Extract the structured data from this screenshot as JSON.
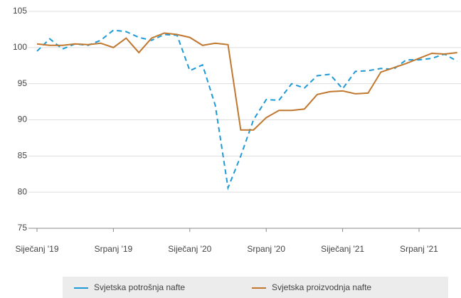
{
  "chart_data": {
    "type": "line",
    "categories": [
      "Siječanj '19",
      null,
      null,
      null,
      null,
      null,
      "Srpanj '19",
      null,
      null,
      null,
      null,
      null,
      "Siječanj '20",
      null,
      null,
      null,
      null,
      null,
      "Srpanj '20",
      null,
      null,
      null,
      null,
      null,
      "Siječanj '21",
      null,
      null,
      null,
      null,
      null,
      "Srpanj '21",
      null,
      null,
      null
    ],
    "series": [
      {
        "name": "Svjetska potrošnja nafte",
        "color": "#1e9ad6",
        "dashed": true,
        "values": [
          99.5,
          101.2,
          99.8,
          100.5,
          100.3,
          101,
          102.4,
          102.2,
          101.4,
          101,
          101.8,
          101.7,
          96.8,
          97.6,
          92,
          80.6,
          85,
          90,
          92.8,
          92.7,
          95,
          94.4,
          96.1,
          96.3,
          94.3,
          96.7,
          96.8,
          97.1,
          97,
          98.3,
          98.3,
          98.5,
          99.1,
          98.1
        ]
      },
      {
        "name": "Svjetska proizvodnja nafte",
        "color": "#c0772f",
        "dashed": false,
        "values": [
          100.5,
          100.3,
          100.3,
          100.5,
          100.4,
          100.6,
          100,
          101.3,
          99.3,
          101.3,
          102,
          101.8,
          101.4,
          100.3,
          100.6,
          100.4,
          88.6,
          88.6,
          90.3,
          91.3,
          91.3,
          91.5,
          93.5,
          93.9,
          94,
          93.6,
          93.7,
          96.6,
          97.2,
          97.8,
          98.5,
          99.2,
          99.1,
          99.3
        ]
      }
    ],
    "ylim": [
      75,
      105
    ],
    "yticks": [
      75,
      80,
      85,
      90,
      95,
      100,
      105
    ],
    "grid": true,
    "legend": "bottom"
  }
}
